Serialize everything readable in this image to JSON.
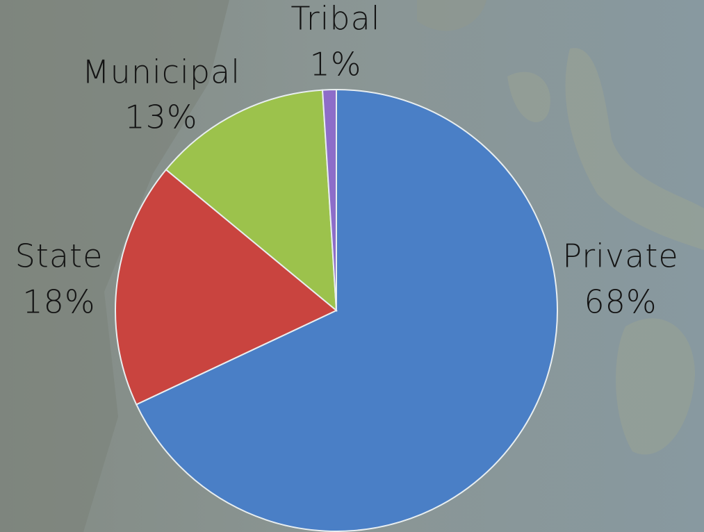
{
  "chart_data": {
    "type": "pie",
    "categories": [
      "Private",
      "State",
      "Municipal",
      "Tribal"
    ],
    "values": [
      68,
      18,
      13,
      1
    ],
    "value_labels": [
      "68%",
      "18%",
      "13%",
      "1%"
    ],
    "colors": [
      "#4a7fc6",
      "#c9443f",
      "#9cc24c",
      "#8d6dc9"
    ]
  }
}
